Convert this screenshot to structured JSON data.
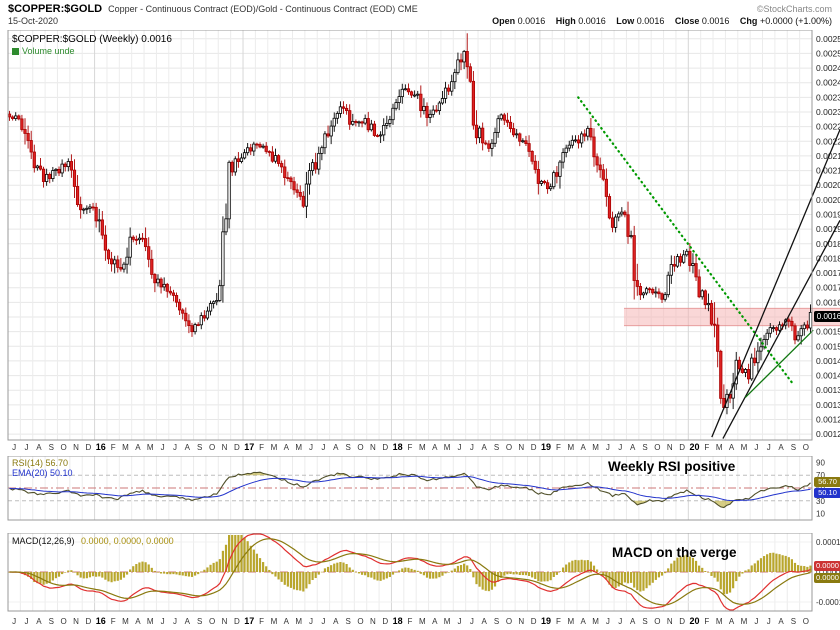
{
  "header": {
    "symbol": "$COPPER:$GOLD",
    "description": "Copper - Continuous Contract (EOD)/Gold - Continuous Contract (EOD) CME",
    "copyright": "©StockCharts.com",
    "date": "15-Oct-2020",
    "quote": {
      "open_label": "Open",
      "open": "0.0016",
      "high_label": "High",
      "high": "0.0016",
      "low_label": "Low",
      "low": "0.0016",
      "close_label": "Close",
      "close": "0.0016",
      "chg_label": "Chg",
      "chg": "+0.0000 (+1.00%)"
    }
  },
  "legend": {
    "main": "$COPPER:$GOLD (Weekly) 0.0016",
    "volume": "Volume unde"
  },
  "tags": {
    "price": "0.0016",
    "rsi": "56.70",
    "rsi_ema": "50.10",
    "macd_1": "0.0000",
    "macd_2": "0.0000"
  },
  "colors": {
    "up_candle": "#000000",
    "down_candle": "#dd2222",
    "trend_green": "#009900",
    "trend_black": "#111111",
    "zone_pink": "#f6b0b0",
    "rsi_line": "#50502a",
    "ema_line": "#2233cc",
    "macd_line": "#e03030",
    "signal_line": "#8a7a10",
    "histogram": "#b9a62c"
  },
  "chart_data": [
    {
      "type": "candlestick",
      "title": "$COPPER:$GOLD (Weekly)",
      "last": 0.0016,
      "ylim": [
        0.00118,
        0.00258
      ],
      "y_axis_labels": [
        "0.0025",
        "0.0025",
        "0.0024",
        "0.0024",
        "0.0023",
        "0.0023",
        "0.0022",
        "0.0022",
        "0.0021",
        "0.0021",
        "0.0020",
        "0.0020",
        "0.0019",
        "0.0019",
        "0.0018",
        "0.0018",
        "0.0017",
        "0.0017",
        "0.0016",
        "0.0016",
        "0.0015",
        "0.0015",
        "0.0014",
        "0.0014",
        "0.0013",
        "0.0013",
        "0.0012",
        "0.0012"
      ],
      "x_tick_labels": [
        "J",
        "J",
        "A",
        "S",
        "O",
        "N",
        "D",
        "16",
        "F",
        "M",
        "A",
        "M",
        "J",
        "J",
        "A",
        "S",
        "O",
        "N",
        "D",
        "17",
        "F",
        "M",
        "A",
        "M",
        "J",
        "J",
        "A",
        "S",
        "O",
        "N",
        "D",
        "18",
        "F",
        "M",
        "A",
        "M",
        "J",
        "J",
        "A",
        "S",
        "O",
        "N",
        "D",
        "19",
        "F",
        "M",
        "A",
        "M",
        "J",
        "J",
        "A",
        "S",
        "O",
        "N",
        "D",
        "20",
        "F",
        "M",
        "A",
        "M",
        "J",
        "J",
        "A",
        "S",
        "O"
      ],
      "monthly_close_estimates": [
        0.00228,
        0.00215,
        0.00207,
        0.0021,
        0.00212,
        0.00196,
        0.00198,
        0.00185,
        0.00175,
        0.00186,
        0.00188,
        0.00174,
        0.00168,
        0.00164,
        0.00157,
        0.0016,
        0.00168,
        0.0021,
        0.00215,
        0.00218,
        0.00217,
        0.00212,
        0.00205,
        0.00199,
        0.00214,
        0.00223,
        0.00232,
        0.00226,
        0.00227,
        0.00222,
        0.00229,
        0.00238,
        0.00236,
        0.00228,
        0.00232,
        0.00242,
        0.0025,
        0.00224,
        0.00218,
        0.00228,
        0.00222,
        0.0022,
        0.00207,
        0.00204,
        0.00218,
        0.0022,
        0.00223,
        0.00208,
        0.00193,
        0.00196,
        0.00168,
        0.0017,
        0.00167,
        0.00178,
        0.00183,
        0.0017,
        0.0016,
        0.00128,
        0.00143,
        0.0014,
        0.00152,
        0.00156,
        0.00158,
        0.00152,
        0.0016
      ],
      "annotations": [
        {
          "kind": "trendline",
          "style": "dotted",
          "color": "#009900",
          "from": [
            45.6,
            0.00235
          ],
          "to": [
            62.9,
            0.001375
          ]
        },
        {
          "kind": "zone",
          "color": "#f6b0b0",
          "from_x": 49.3,
          "to_x": 67.3,
          "v_low": 0.00157,
          "v_high": 0.00163
        },
        {
          "kind": "trendline",
          "style": "solid",
          "color": "#111111",
          "from": [
            56.4,
            0.00119
          ],
          "to": [
            66.9,
            0.00224
          ]
        },
        {
          "kind": "trendline",
          "style": "solid",
          "color": "#111111",
          "from": [
            57.3,
            0.001185
          ],
          "to": [
            66.9,
            0.00193
          ]
        },
        {
          "kind": "trendline",
          "style": "solid",
          "color": "#117711",
          "from": [
            59.1,
            0.001325
          ],
          "to": [
            64.6,
            0.001555
          ]
        }
      ]
    },
    {
      "type": "line",
      "title": "RSI(14) 56.70",
      "ema_title": "EMA(20) 50.10",
      "current": 56.7,
      "ema_current": 50.1,
      "ylim": [
        0,
        100
      ],
      "levels": [
        70,
        50,
        30
      ],
      "y_axis_labels": [
        "90",
        "70",
        "50",
        "30",
        "10"
      ],
      "y_axis_values": [
        90,
        70,
        50,
        30,
        10
      ],
      "monthly_values": [
        48,
        42,
        40,
        42,
        45,
        38,
        40,
        35,
        32,
        42,
        45,
        38,
        36,
        35,
        32,
        35,
        42,
        68,
        72,
        74,
        72,
        66,
        58,
        52,
        62,
        68,
        73,
        67,
        67,
        63,
        68,
        72,
        69,
        62,
        65,
        68,
        74,
        52,
        47,
        55,
        51,
        50,
        42,
        40,
        52,
        55,
        57,
        47,
        38,
        41,
        25,
        30,
        29,
        40,
        46,
        37,
        30,
        18,
        32,
        33,
        45,
        50,
        53,
        48,
        56.7
      ],
      "annotation_text": "Weekly RSI positive"
    },
    {
      "type": "macd",
      "title": "MACD(12,26,9)",
      "values_text": "0.0000, 0.0000, 0.0000",
      "current": [
        0.0,
        0.0,
        0.0
      ],
      "ylim": [
        -0.00013,
        0.00013
      ],
      "y_axis_labels": [
        "0.0001",
        "0.0000",
        "-0.0001"
      ],
      "y_axis_values": [
        0.0001,
        0,
        -0.0001
      ],
      "annotation_text": "MACD on the verge"
    }
  ]
}
